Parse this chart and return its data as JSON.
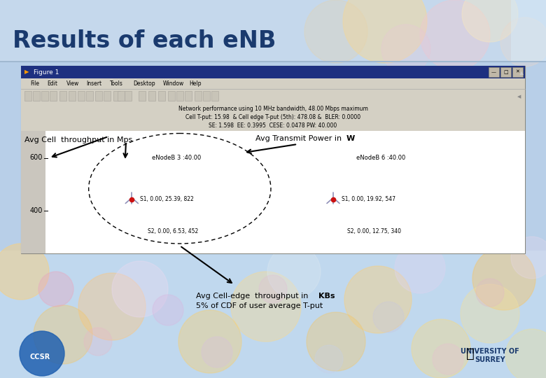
{
  "title": "Results of each eNB",
  "title_color": "#1a3a6e",
  "figure_window": {
    "title_bar": "Figure 1",
    "title_bar_color": "#1e2e80",
    "menu_items": [
      "File",
      "Edit",
      "View",
      "Insert",
      "Tools",
      "Desktop",
      "Window",
      "Help"
    ],
    "perf_text_line1": "Network performance using 10 MHz bandwidth, 48.00 Mbps maximum",
    "perf_text_line2": "Cell T-put: 15.98  & Cell edge T-put (5th): 478.08 &  BLER: 0.0000",
    "perf_text_line3": "SE: 1.598  EE: 0.3995  CESE: 0.0478 PW: 40.000"
  },
  "enodeb3_label": "eNodeB 3 :40.00",
  "enodeb6_label": "eNodeB 6 :40.00",
  "s1_left_label": "S1, 0.00, 25.39, 822",
  "s2_left_label": "S2, 0.00, 6.53, 452",
  "s1_right_label": "S1, 0.00, 19.92, 547",
  "s2_right_label": "S2, 0.00, 12.75, 340",
  "ann_cell": "Avg Cell  throughput in Mps",
  "ann_power_prefix": "Avg Transmit Power in ",
  "ann_power_bold": "W",
  "ann_edge_prefix": "Avg Cell-edge  throughput in ",
  "ann_edge_bold": "KBs",
  "ann_edge_line2": "5% of CDF of user average T-put",
  "header_bg": "#c8ddf0",
  "win_title_bar_color": "#1e3080",
  "win_bg": "#ccccbb",
  "plot_bg": "#ffffff",
  "gray_left_color": "#c8c4bc",
  "ytick_labels": [
    "600",
    "400"
  ],
  "slide_bg": "#b0c8e0"
}
